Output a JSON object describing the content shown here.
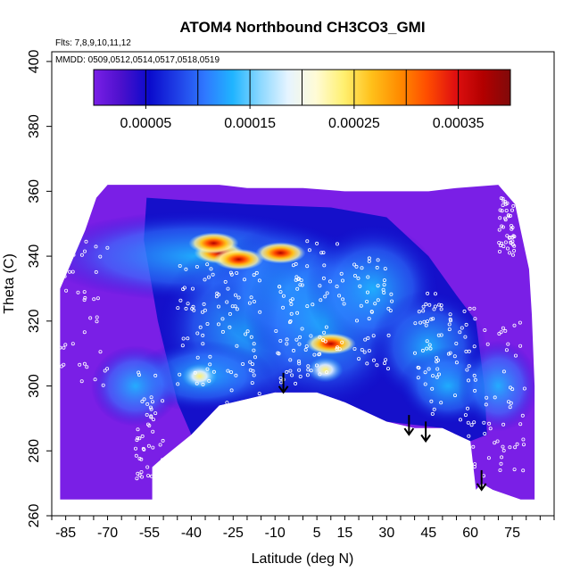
{
  "chart_data": {
    "type": "heatmap",
    "title": "ATOM4 Northbound CH3CO3_GMI",
    "flights_label": "Flts: 7,8,9,10,11,12",
    "dates_label": "MMDD: 0509,0512,0514,0517,0518,0519",
    "xlabel": "Latitude (deg N)",
    "ylabel": "Theta (C)",
    "xlim": [
      -90,
      90
    ],
    "ylim": [
      260,
      403
    ],
    "x_ticks": [
      -85,
      -70,
      -55,
      -40,
      -25,
      -10,
      5,
      15,
      30,
      45,
      60,
      75
    ],
    "x_tick_labels": [
      "-85",
      "-70",
      "-55",
      "-40",
      "-25",
      "-10",
      "5",
      "15",
      "30",
      "45",
      "60",
      "75"
    ],
    "y_ticks": [
      260,
      280,
      300,
      320,
      340,
      360,
      380,
      400
    ],
    "y_tick_labels": [
      "260",
      "280",
      "300",
      "320",
      "340",
      "360",
      "380",
      "400"
    ],
    "colorbar": {
      "min": 0,
      "max": 0.0004,
      "ticks": [
        5e-05,
        0.00015,
        0.00025,
        0.00035
      ],
      "tick_labels": [
        "0.00005",
        "0.00015",
        "0.00025",
        "0.00035"
      ],
      "colors": [
        "#7a1fe6",
        "#4b10cc",
        "#0a0acc",
        "#1f3fe6",
        "#2f78ff",
        "#20b4ff",
        "#8cd8ff",
        "#e6f4ff",
        "#fffbd6",
        "#fff070",
        "#ffc01a",
        "#ff8c00",
        "#ff4d00",
        "#e01010",
        "#b30000",
        "#800a0a"
      ]
    },
    "surface_boundary": [
      [
        -54,
        265
      ],
      [
        -54,
        275
      ],
      [
        -50,
        278
      ],
      [
        -40,
        285
      ],
      [
        -30,
        294
      ],
      [
        -20,
        296
      ],
      [
        -10,
        298
      ],
      [
        5,
        298
      ],
      [
        15,
        295
      ],
      [
        30,
        289
      ],
      [
        40,
        287
      ],
      [
        50,
        287
      ],
      [
        60,
        283
      ],
      [
        62,
        268
      ],
      [
        64,
        270
      ],
      [
        68,
        268
      ],
      [
        78,
        265
      ]
    ],
    "hotspots": [
      {
        "lat": -30,
        "theta": 341,
        "value": 0.00036
      },
      {
        "lat": -32,
        "theta": 344,
        "value": 0.00028
      },
      {
        "lat": -23,
        "theta": 339,
        "value": 0.0003
      },
      {
        "lat": 10,
        "theta": 313,
        "value": 0.00034
      },
      {
        "lat": -8,
        "theta": 341,
        "value": 0.00028
      },
      {
        "lat": -37,
        "theta": 303,
        "value": 0.00024
      },
      {
        "lat": 8,
        "theta": 305,
        "value": 0.00018
      }
    ],
    "arrows": [
      {
        "lat": -7,
        "theta": 298
      },
      {
        "lat": 38,
        "theta": 285
      },
      {
        "lat": 44,
        "theta": 283
      },
      {
        "lat": 64,
        "theta": 268
      }
    ]
  }
}
